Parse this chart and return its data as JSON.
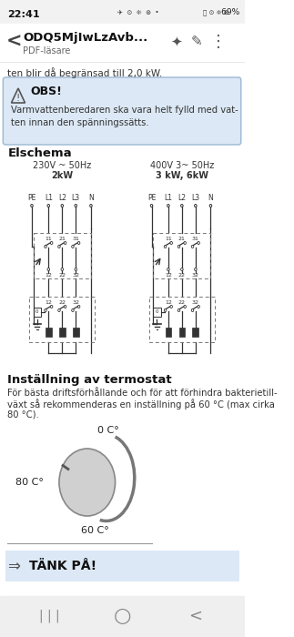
{
  "bg_color": "#ffffff",
  "status_text": "22:41",
  "battery_text": "69%",
  "title_text": "ODQ5MjIwLzAvb...",
  "subtitle_text": "PDF-läsare",
  "body_text_top": "ten blir då begränsad till 2,0 kW.",
  "obs_bg": "#dce8f5",
  "obs_border": "#9ab8d5",
  "obs_title": "OBS!",
  "obs_line1": "Varmvattenberedaren ska vara helt fylld med vat-",
  "obs_line2": "ten innan den spänningssätts.",
  "elschema_title": "Elschema",
  "schema_left_line1": "230V ~ 50Hz",
  "schema_left_line2": "2kW",
  "schema_right_line1": "400V 3~ 50Hz",
  "schema_right_line2": "3 kW, 6kW",
  "schema_labels": "PE  L1  L2  L3  N",
  "termostat_title": "Inställning av termostat",
  "termostat_line1": "För bästa driftsförhållande och för att förhindra bakterietill-",
  "termostat_line2": "växt så rekommenderas en inställning på 60 °C (max cirka",
  "termostat_line3": "80 °C).",
  "temp_0": "0 C°",
  "temp_80": "80 C°",
  "temp_60": "60 C°",
  "tank_pa_text": "TÄNK PÅ!",
  "tank_pa_bg": "#dce8f5",
  "lc": "#333333",
  "knob_fill": "#d0d0d0",
  "knob_edge": "#888888"
}
